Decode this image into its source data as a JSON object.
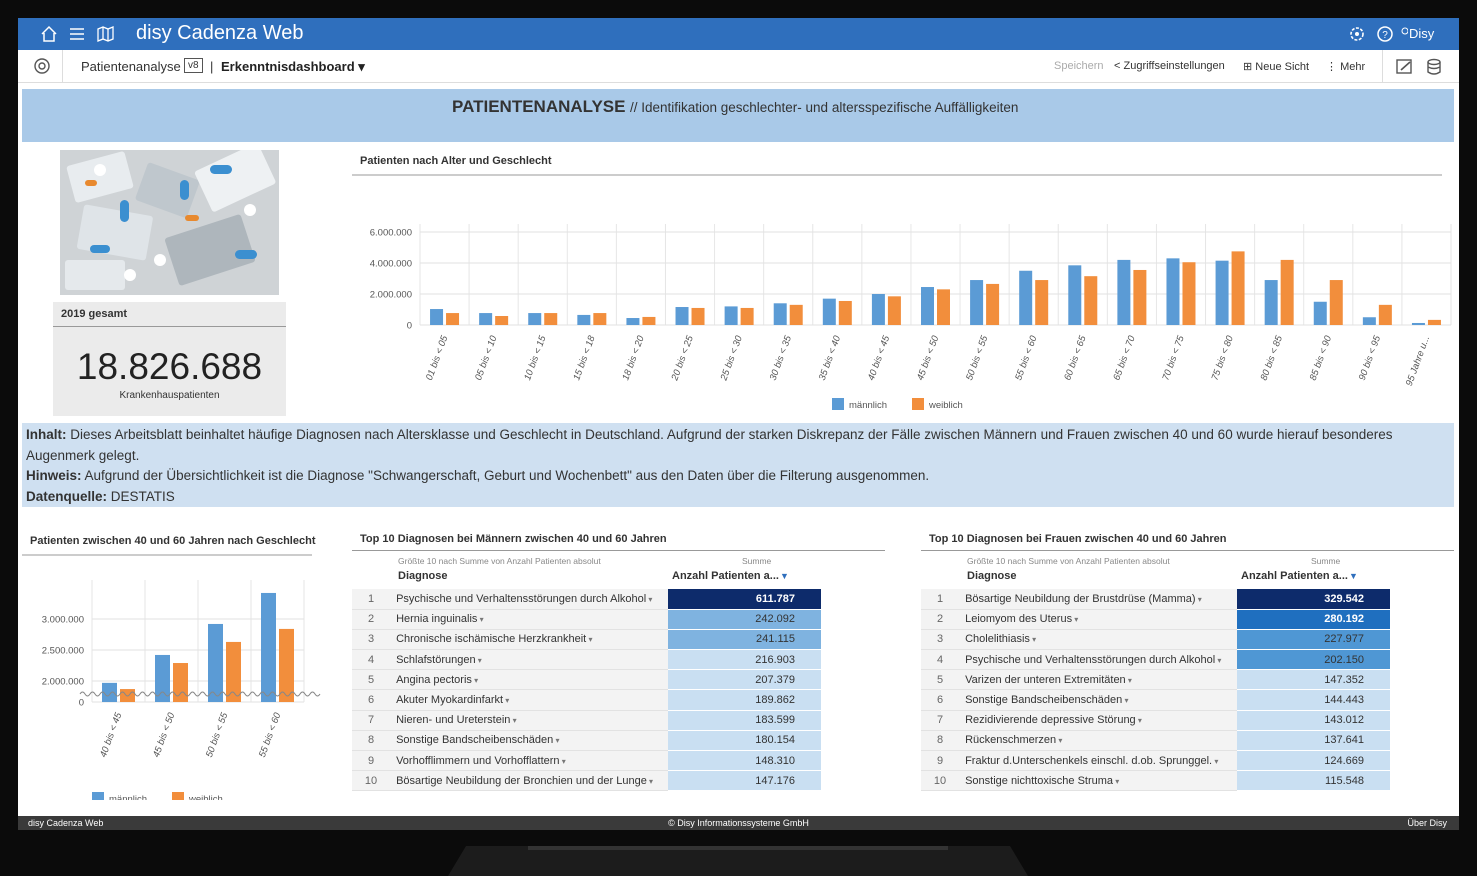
{
  "header": {
    "app_title": "disy Cadenza Web",
    "user": "Disy"
  },
  "toolbar": {
    "workbook": "Patientenanalyse",
    "version": "v8",
    "sheet": "Erkenntnisdashboard",
    "actions": [
      "Speichern",
      "Zugriffseinstellungen",
      "Neue Sicht",
      "Mehr"
    ]
  },
  "banner": {
    "title": "PATIENTENANALYSE",
    "subtitle": "// Identifikation geschlechter- und altersspezifische Auffälligkeiten"
  },
  "kpi": {
    "label": "2019 gesamt",
    "value": "18.826.688",
    "caption": "Krankenhauspatienten"
  },
  "chart_data": [
    {
      "type": "bar",
      "title": "Patienten nach Alter und Geschlecht",
      "categories": [
        "01 bis < 05",
        "05 bis < 10",
        "10 bis < 15",
        "15 bis < 18",
        "18 bis < 20",
        "20 bis < 25",
        "25 bis < 30",
        "30 bis < 35",
        "35 bis < 40",
        "40 bis < 45",
        "45 bis < 50",
        "50 bis < 55",
        "55 bis < 60",
        "60 bis < 65",
        "65 bis < 70",
        "70 bis < 75",
        "75 bis < 80",
        "80 bis < 85",
        "85 bis < 90",
        "90 bis < 95",
        "95 Jahre u..."
      ],
      "series": [
        {
          "name": "männlich",
          "color": "#5b9bd5",
          "values": [
            1030000,
            770000,
            770000,
            650000,
            450000,
            1160000,
            1200000,
            1400000,
            1700000,
            2000000,
            2450000,
            2900000,
            3500000,
            3850000,
            4200000,
            4300000,
            4150000,
            2900000,
            1500000,
            500000,
            130000
          ]
        },
        {
          "name": "weiblich",
          "color": "#f28e3c",
          "values": [
            770000,
            580000,
            770000,
            770000,
            520000,
            1100000,
            1100000,
            1300000,
            1550000,
            1850000,
            2300000,
            2650000,
            2900000,
            3150000,
            3550000,
            4050000,
            4750000,
            4200000,
            2900000,
            1300000,
            330000
          ]
        }
      ],
      "ylim": [
        0,
        6000000
      ],
      "yticks": [
        0,
        {
          "value": 2000000,
          "label": "2.000.000"
        },
        {
          "value": 4000000,
          "label": "4.000.000"
        },
        {
          "value": 6000000,
          "label": "6.000.000"
        }
      ],
      "grid": true,
      "legend": "bottom"
    },
    {
      "type": "bar",
      "title": "Patienten zwischen 40 und 60 Jahren nach Geschlecht",
      "categories": [
        "40 bis < 45",
        "45 bis < 50",
        "50 bis < 55",
        "55 bis < 60"
      ],
      "series": [
        {
          "name": "männlich",
          "color": "#5b9bd5",
          "values": [
            1970000,
            2420000,
            2920000,
            3420000
          ]
        },
        {
          "name": "weiblich",
          "color": "#f28e3c",
          "values": [
            1870000,
            2290000,
            2630000,
            2840000
          ]
        }
      ],
      "ylim": [
        0,
        3500000
      ],
      "yticks": [
        0,
        {
          "value": 2000000,
          "label": "2.000.000"
        },
        {
          "value": 2500000,
          "label": "2.500.000"
        },
        {
          "value": 3000000,
          "label": "3.000.000"
        }
      ],
      "axis_break": true,
      "grid": true,
      "legend": "bottom"
    }
  ],
  "info": [
    {
      "label": "Inhalt:",
      "text": "Dieses Arbeitsblatt beinhaltet häufige Diagnosen nach Altersklasse und Geschlecht in Deutschland. Aufgrund der starken Diskrepanz der Fälle zwischen Männern und Frauen zwischen 40 und 60 wurde hierauf besonderes Augenmerk gelegt."
    },
    {
      "label": "Hinweis:",
      "text": "Aufgrund der Übersichtlichkeit ist die Diagnose \"Schwangerschaft, Geburt und Wochenbett\" aus den Daten über die Filterung ausgenommen."
    },
    {
      "label": "Datenquelle:",
      "text": "DESTATIS"
    }
  ],
  "tables": [
    {
      "title": "Top 10 Diagnosen bei Männern zwischen 40 und 60 Jahren",
      "subtitle": "Größte 10 nach Summe von Anzahl Patienten absolut",
      "sum_label": "Summe",
      "columns": [
        "Diagnose",
        "Anzahl Patienten a..."
      ],
      "rows": [
        [
          "1",
          "Psychische und Verhaltensstörungen durch Alkohol",
          "611.787"
        ],
        [
          "2",
          "Hernia inguinalis",
          "242.092"
        ],
        [
          "3",
          "Chronische ischämische Herzkrankheit",
          "241.115"
        ],
        [
          "4",
          "Schlafstörungen",
          "216.903"
        ],
        [
          "5",
          "Angina pectoris",
          "207.379"
        ],
        [
          "6",
          "Akuter Myokardinfarkt",
          "189.862"
        ],
        [
          "7",
          "Nieren- und Ureterstein",
          "183.599"
        ],
        [
          "8",
          "Sonstige Bandscheibenschäden",
          "180.154"
        ],
        [
          "9",
          "Vorhofflimmern und Vorhofflattern",
          "148.310"
        ],
        [
          "10",
          "Bösartige Neubildung der Bronchien und der Lunge",
          "147.176"
        ]
      ]
    },
    {
      "title": "Top 10 Diagnosen bei Frauen zwischen 40 und 60 Jahren",
      "subtitle": "Größte 10 nach Summe von Anzahl Patienten absolut",
      "sum_label": "Summe",
      "columns": [
        "Diagnose",
        "Anzahl Patienten a..."
      ],
      "rows": [
        [
          "1",
          "Bösartige Neubildung der Brustdrüse (Mamma)",
          "329.542"
        ],
        [
          "2",
          "Leiomyom des Uterus",
          "280.192"
        ],
        [
          "3",
          "Cholelithiasis",
          "227.977"
        ],
        [
          "4",
          "Psychische und Verhaltensstörungen durch Alkohol",
          "202.150"
        ],
        [
          "5",
          "Varizen der unteren Extremitäten",
          "147.352"
        ],
        [
          "6",
          "Sonstige Bandscheibenschäden",
          "144.443"
        ],
        [
          "7",
          "Rezidivierende depressive Störung",
          "143.012"
        ],
        [
          "8",
          "Rückenschmerzen",
          "137.641"
        ],
        [
          "9",
          "Fraktur d.Unterschenkels einschl. d.ob. Sprunggel.",
          "124.669"
        ],
        [
          "10",
          "Sonstige nichttoxische Struma",
          "115.548"
        ]
      ]
    }
  ],
  "footer": {
    "left": "disy Cadenza Web",
    "center": "© Disy Informationssysteme GmbH",
    "right": "Über Disy"
  }
}
